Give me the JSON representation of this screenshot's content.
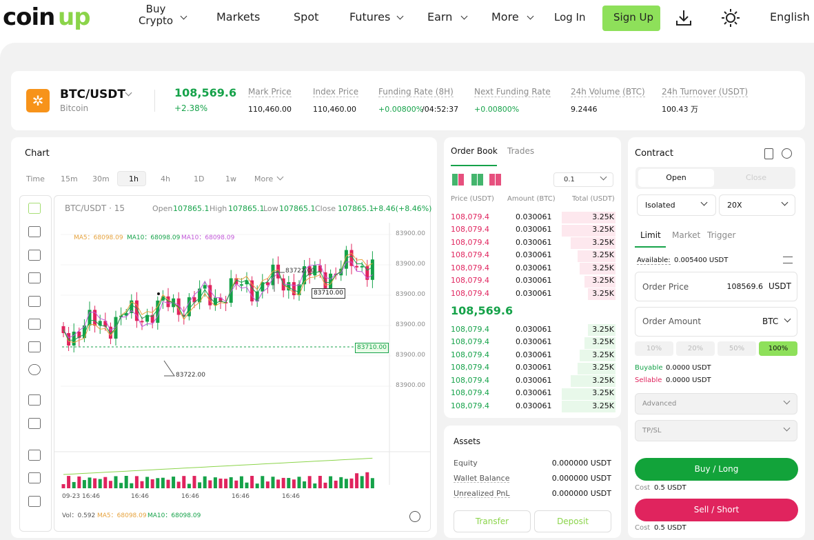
{
  "nav": {
    "logo": "coin",
    "logo_accent": "up",
    "items": [
      "Buy Crypto",
      "Markets",
      "Spot",
      "Futures",
      "Earn",
      "More"
    ],
    "login": "Log In",
    "signup": "Sign Up",
    "language": "English"
  },
  "ticker": {
    "pair": "BTC/USDT",
    "name": "Bitcoin",
    "price": "108,569.6",
    "change": "+2.38%",
    "stats": [
      {
        "label": "Mark Price",
        "value": "110,460.00"
      },
      {
        "label": "Index Price",
        "value": "110,460.00"
      },
      {
        "label": "Funding Rate (8H)",
        "value": "+0.00800%",
        "extra": "/04:52:37"
      },
      {
        "label": "Next Funding Rate",
        "value": "+0.00800%"
      },
      {
        "label": "24h Volume (BTC)",
        "value": "9.2446"
      },
      {
        "label": "24h Turnover (USDT)",
        "value": "100.43 万"
      }
    ]
  },
  "chart": {
    "title": "Chart",
    "intervals": [
      "Time",
      "15m",
      "30m",
      "1h",
      "4h",
      "1D",
      "1w",
      "More"
    ],
    "symbol": "BTC/USDT · 15",
    "ohlc": [
      {
        "label": "Open",
        "value": "107865.1"
      },
      {
        "label": "High",
        "value": "107865.1"
      },
      {
        "label": "Low",
        "value": "107865.1"
      },
      {
        "label": "Close",
        "value": "107865.1"
      }
    ],
    "change": "+8.46(+8.46%)",
    "ma": [
      "MA5：68098.09",
      "MA10：68098.09",
      "MA10：68098.09"
    ],
    "price_labels": [
      "83900.00",
      "83900.00",
      "83900.00",
      "83900.00",
      "83900.00",
      "83900.00"
    ],
    "high_label": "83722.00",
    "low_label": "83722.00",
    "cursor_label": "83710.00",
    "last_label": "83710.00",
    "time_labels": [
      "09-23 16:46",
      "16:46",
      "16:46",
      "16:46",
      "16:46"
    ],
    "vol": [
      "Vol：0.592",
      "MA5：68098.09",
      "MA10：68098.09"
    ]
  },
  "order_book": {
    "tabs": [
      "Order Book",
      "Trades"
    ],
    "precision": "0.1",
    "columns": [
      "Price (USDT)",
      "Amount (BTC)",
      "Total (USDT)"
    ],
    "asks": [
      [
        "108,079.4",
        "0.030061",
        "3.25K"
      ],
      [
        "108,079.4",
        "0.030061",
        "3.25K"
      ],
      [
        "108,079.4",
        "0.030061",
        "3.25K"
      ],
      [
        "108,079.4",
        "0.030061",
        "3.25K"
      ],
      [
        "108,079.4",
        "0.030061",
        "3.25K"
      ],
      [
        "108,079.4",
        "0.030061",
        "3.25K"
      ],
      [
        "108,079.4",
        "0.030061",
        "3.25K"
      ]
    ],
    "last": "108,569.6",
    "bids": [
      [
        "108,079.4",
        "0.030061",
        "3.25K"
      ],
      [
        "108,079.4",
        "0.030061",
        "3.25K"
      ],
      [
        "108,079.4",
        "0.030061",
        "3.25K"
      ],
      [
        "108,079.4",
        "0.030061",
        "3.25K"
      ],
      [
        "108,079.4",
        "0.030061",
        "3.25K"
      ],
      [
        "108,079.4",
        "0.030061",
        "3.25K"
      ],
      [
        "108,079.4",
        "0.030061",
        "3.25K"
      ]
    ]
  },
  "assets": {
    "title": "Assets",
    "rows": [
      [
        "Equity",
        "0.000000 USDT"
      ],
      [
        "Wallet Balance",
        "0.000000 USDT"
      ],
      [
        "Unrealized PnL",
        "0.000000 USDT"
      ]
    ],
    "buttons": [
      "Transfer",
      "Deposit"
    ]
  },
  "contract": {
    "title": "Contract",
    "tabs": [
      "Open",
      "Close"
    ],
    "margin": "Isolated",
    "leverage": "20X",
    "types": [
      "Limit",
      "Market",
      "Trigger"
    ],
    "available_label": "Available:",
    "available": "0.005400 USDT",
    "order_price_label": "Order Price",
    "order_price": "108569.6",
    "order_price_unit": "USDT",
    "amount_label": "Order Amount",
    "amount_unit": "BTC",
    "percents": [
      "10%",
      "20%",
      "50%",
      "100%"
    ],
    "buyable_label": "Buyable",
    "buyable": "0.0000 USDT",
    "sellable_label": "Sellable",
    "sellable": "0.0000 USDT",
    "advanced": "Advanced",
    "tpsl": "TP/SL",
    "buy": "Buy / Long",
    "sell": "Sell / Short",
    "cost_label": "Cost",
    "buy_cost": "0.5 USDT",
    "sell_cost": "0.5 USDT"
  }
}
